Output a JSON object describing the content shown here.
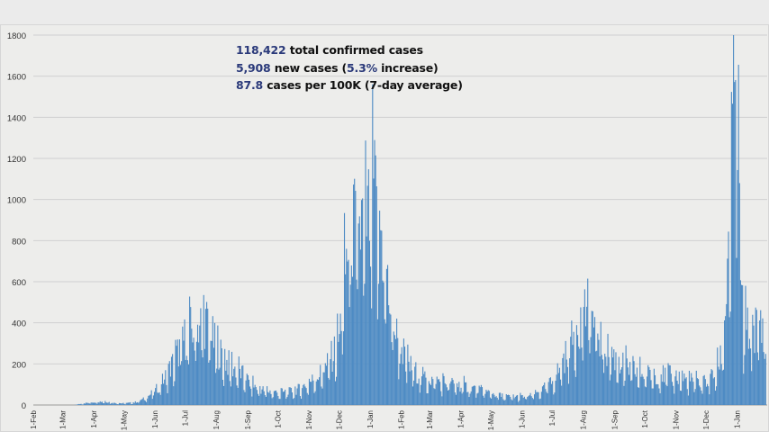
{
  "chart_data": {
    "type": "bar",
    "ylim": [
      0,
      1800
    ],
    "yticks": [
      0,
      200,
      400,
      600,
      800,
      1000,
      1200,
      1400,
      1600,
      1800
    ],
    "grid": true,
    "bar_color": "#4e8bc4",
    "x_tick_labels": [
      "1-Feb",
      "1-Mar",
      "1-Apr",
      "1-May",
      "1-Jun",
      "1-Jul",
      "1-Aug",
      "1-Sep",
      "1-Oct",
      "1-Nov",
      "1-Dec",
      "1-Jan",
      "1-Feb",
      "1-Mar",
      "1-Apr",
      "1-May",
      "1-Jun",
      "1-Jul",
      "1-Aug",
      "1-Sep",
      "1-Oct",
      "1-Nov",
      "1-Dec",
      "1-Jan"
    ],
    "x_tick_days": [
      0,
      29,
      60,
      90,
      121,
      151,
      182,
      213,
      243,
      274,
      304,
      335,
      366,
      394,
      425,
      455,
      486,
      516,
      547,
      578,
      608,
      639,
      669,
      700
    ],
    "series_start_day": 29,
    "series_end_day": 728,
    "approx_daily_cases_anchors": [
      [
        29,
        0
      ],
      [
        40,
        0
      ],
      [
        50,
        8
      ],
      [
        60,
        15
      ],
      [
        70,
        18
      ],
      [
        80,
        10
      ],
      [
        90,
        8
      ],
      [
        100,
        12
      ],
      [
        110,
        30
      ],
      [
        121,
        70
      ],
      [
        130,
        130
      ],
      [
        140,
        220
      ],
      [
        148,
        310
      ],
      [
        155,
        360
      ],
      [
        162,
        380
      ],
      [
        168,
        420
      ],
      [
        172,
        400
      ],
      [
        180,
        300
      ],
      [
        188,
        230
      ],
      [
        196,
        190
      ],
      [
        205,
        160
      ],
      [
        213,
        120
      ],
      [
        220,
        90
      ],
      [
        230,
        70
      ],
      [
        243,
        60
      ],
      [
        255,
        65
      ],
      [
        265,
        80
      ],
      [
        274,
        110
      ],
      [
        282,
        140
      ],
      [
        290,
        180
      ],
      [
        298,
        250
      ],
      [
        304,
        330
      ],
      [
        309,
        620
      ],
      [
        313,
        780
      ],
      [
        318,
        850
      ],
      [
        324,
        860
      ],
      [
        330,
        880
      ],
      [
        335,
        930
      ],
      [
        338,
        1060
      ],
      [
        342,
        880
      ],
      [
        346,
        820
      ],
      [
        350,
        640
      ],
      [
        355,
        460
      ],
      [
        360,
        350
      ],
      [
        366,
        280
      ],
      [
        372,
        200
      ],
      [
        380,
        160
      ],
      [
        390,
        130
      ],
      [
        400,
        120
      ],
      [
        410,
        110
      ],
      [
        420,
        100
      ],
      [
        430,
        90
      ],
      [
        440,
        80
      ],
      [
        450,
        65
      ],
      [
        460,
        50
      ],
      [
        470,
        40
      ],
      [
        486,
        40
      ],
      [
        495,
        45
      ],
      [
        505,
        70
      ],
      [
        515,
        110
      ],
      [
        522,
        170
      ],
      [
        530,
        250
      ],
      [
        537,
        330
      ],
      [
        543,
        420
      ],
      [
        549,
        470
      ],
      [
        555,
        430
      ],
      [
        560,
        360
      ],
      [
        566,
        300
      ],
      [
        572,
        260
      ],
      [
        578,
        230
      ],
      [
        585,
        200
      ],
      [
        595,
        170
      ],
      [
        608,
        150
      ],
      [
        620,
        150
      ],
      [
        630,
        145
      ],
      [
        640,
        140
      ],
      [
        650,
        125
      ],
      [
        660,
        110
      ],
      [
        669,
        120
      ],
      [
        678,
        150
      ],
      [
        683,
        230
      ],
      [
        686,
        330
      ],
      [
        689,
        560
      ],
      [
        691,
        820
      ],
      [
        693,
        920
      ],
      [
        695,
        1240
      ],
      [
        697,
        1500
      ],
      [
        698,
        1550
      ],
      [
        700,
        1620
      ],
      [
        702,
        900
      ],
      [
        704,
        520
      ],
      [
        706,
        380
      ]
    ]
  },
  "stats": {
    "total_num": "118,422",
    "total_label": " total confirmed cases",
    "new_num": "5,908",
    "new_label": " new cases (",
    "new_pct": "5.3%",
    "new_suffix": " increase)",
    "avg_num": "87.8",
    "avg_label": " cases per 100K (7-day average)"
  }
}
